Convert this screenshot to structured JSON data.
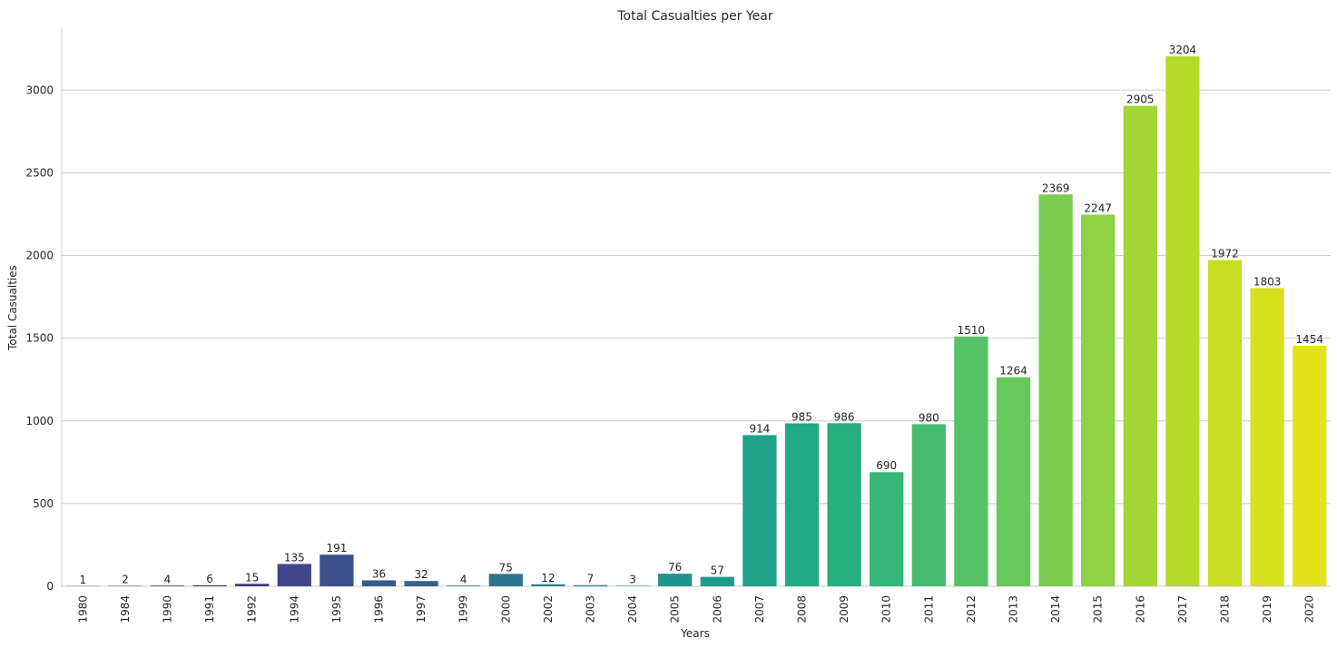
{
  "chart_data": {
    "type": "bar",
    "title": "Total Casualties per Year",
    "xlabel": "Years",
    "ylabel": "Total Casualties",
    "ylim": [
      0,
      3380
    ],
    "yticks": [
      0,
      500,
      1000,
      1500,
      2000,
      2500,
      3000
    ],
    "grid": "y",
    "palette": "viridis",
    "categories": [
      "1980",
      "1984",
      "1990",
      "1991",
      "1992",
      "1994",
      "1995",
      "1996",
      "1997",
      "1999",
      "2000",
      "2002",
      "2003",
      "2004",
      "2005",
      "2006",
      "2007",
      "2008",
      "2009",
      "2010",
      "2011",
      "2012",
      "2013",
      "2014",
      "2015",
      "2016",
      "2017",
      "2018",
      "2019",
      "2020"
    ],
    "values": [
      1,
      2,
      4,
      6,
      15,
      135,
      191,
      36,
      32,
      4,
      75,
      12,
      7,
      3,
      76,
      57,
      914,
      985,
      986,
      690,
      980,
      1510,
      1264,
      2369,
      2247,
      2905,
      3204,
      1972,
      1803,
      1454
    ],
    "colors": [
      "#450559",
      "#481467",
      "#482273",
      "#472f7d",
      "#443a83",
      "#404688",
      "#3c508b",
      "#385b8c",
      "#34648d",
      "#306d8e",
      "#2d748e",
      "#2a7c8e",
      "#27858e",
      "#248d8d",
      "#21928c",
      "#1f9a89",
      "#1fa287",
      "#23a983",
      "#29af7f",
      "#36b677",
      "#45bc6f",
      "#55c266",
      "#67c85c",
      "#7ccd4f",
      "#8dd243",
      "#a2d535",
      "#b5da2a",
      "#c6dd21",
      "#d7df1e",
      "#e3e21c"
    ]
  }
}
